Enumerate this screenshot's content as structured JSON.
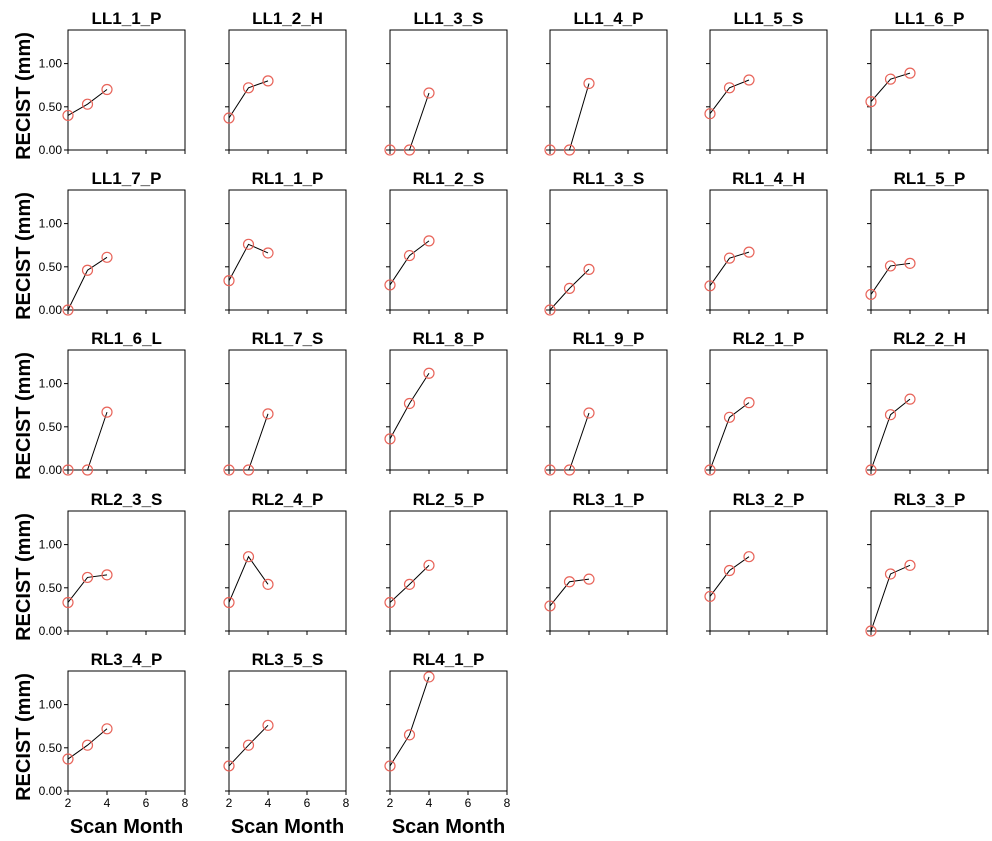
{
  "chart_data": {
    "type": "scatter",
    "layout_note": "small multiples, 6 columns",
    "shared_ylabel": "RECIST (mm)",
    "shared_xlabel": "Scan Month",
    "xlim": [
      2,
      8
    ],
    "ylim": [
      0,
      1.25
    ],
    "xticks": [
      "2",
      "4",
      "6",
      "8"
    ],
    "yticks": [
      "0.00",
      "0.50",
      "1.00"
    ],
    "ytick_values": [
      0,
      0.5,
      1.0
    ],
    "xtick_values": [
      2,
      4,
      6,
      8
    ],
    "marker_color": "#e8645a",
    "line_color": "#000000",
    "grid": false,
    "panels": [
      {
        "title": "LL1_1_P",
        "x": [
          2,
          3,
          4
        ],
        "y": [
          0.4,
          0.53,
          0.7
        ]
      },
      {
        "title": "LL1_2_H",
        "x": [
          2,
          3,
          4
        ],
        "y": [
          0.37,
          0.72,
          0.8
        ]
      },
      {
        "title": "LL1_3_S",
        "x": [
          2,
          3,
          4
        ],
        "y": [
          0.0,
          0.0,
          0.66
        ]
      },
      {
        "title": "LL1_4_P",
        "x": [
          2,
          3,
          4
        ],
        "y": [
          0.0,
          0.0,
          0.77
        ]
      },
      {
        "title": "LL1_5_S",
        "x": [
          2,
          3,
          4
        ],
        "y": [
          0.42,
          0.72,
          0.81
        ]
      },
      {
        "title": "LL1_6_P",
        "x": [
          2,
          3,
          4
        ],
        "y": [
          0.56,
          0.82,
          0.89
        ]
      },
      {
        "title": "LL1_7_P",
        "x": [
          2,
          3,
          4
        ],
        "y": [
          0.0,
          0.46,
          0.61
        ]
      },
      {
        "title": "RL1_1_P",
        "x": [
          2,
          3,
          4
        ],
        "y": [
          0.34,
          0.76,
          0.66
        ]
      },
      {
        "title": "RL1_2_S",
        "x": [
          2,
          3,
          4
        ],
        "y": [
          0.29,
          0.63,
          0.8
        ]
      },
      {
        "title": "RL1_3_S",
        "x": [
          2,
          3,
          4
        ],
        "y": [
          0.0,
          0.25,
          0.47
        ]
      },
      {
        "title": "RL1_4_H",
        "x": [
          2,
          3,
          4
        ],
        "y": [
          0.28,
          0.6,
          0.67
        ]
      },
      {
        "title": "RL1_5_P",
        "x": [
          2,
          3,
          4
        ],
        "y": [
          0.18,
          0.51,
          0.54
        ]
      },
      {
        "title": "RL1_6_L",
        "x": [
          2,
          3,
          4
        ],
        "y": [
          0.0,
          0.0,
          0.67
        ]
      },
      {
        "title": "RL1_7_S",
        "x": [
          2,
          3,
          4
        ],
        "y": [
          0.0,
          0.0,
          0.65
        ]
      },
      {
        "title": "RL1_8_P",
        "x": [
          2,
          3,
          4
        ],
        "y": [
          0.36,
          0.77,
          1.12
        ]
      },
      {
        "title": "RL1_9_P",
        "x": [
          2,
          3,
          4
        ],
        "y": [
          0.0,
          0.0,
          0.66
        ]
      },
      {
        "title": "RL2_1_P",
        "x": [
          2,
          3,
          4
        ],
        "y": [
          0.0,
          0.61,
          0.78
        ]
      },
      {
        "title": "RL2_2_H",
        "x": [
          2,
          3,
          4
        ],
        "y": [
          0.0,
          0.64,
          0.82
        ]
      },
      {
        "title": "RL2_3_S",
        "x": [
          2,
          3,
          4
        ],
        "y": [
          0.33,
          0.62,
          0.65
        ]
      },
      {
        "title": "RL2_4_P",
        "x": [
          2,
          3,
          4
        ],
        "y": [
          0.33,
          0.86,
          0.54
        ]
      },
      {
        "title": "RL2_5_P",
        "x": [
          2,
          3,
          4
        ],
        "y": [
          0.33,
          0.54,
          0.76
        ]
      },
      {
        "title": "RL3_1_P",
        "x": [
          2,
          3,
          4
        ],
        "y": [
          0.29,
          0.57,
          0.6
        ]
      },
      {
        "title": "RL3_2_P",
        "x": [
          2,
          3,
          4
        ],
        "y": [
          0.4,
          0.7,
          0.86
        ]
      },
      {
        "title": "RL3_3_P",
        "x": [
          2,
          3,
          4
        ],
        "y": [
          0.0,
          0.66,
          0.76
        ]
      },
      {
        "title": "RL3_4_P",
        "x": [
          2,
          3,
          4
        ],
        "y": [
          0.37,
          0.53,
          0.72
        ]
      },
      {
        "title": "RL3_5_S",
        "x": [
          2,
          3,
          4
        ],
        "y": [
          0.29,
          0.53,
          0.76
        ]
      },
      {
        "title": "RL4_1_P",
        "x": [
          2,
          3,
          4
        ],
        "y": [
          0.29,
          0.65,
          1.32
        ]
      }
    ]
  }
}
